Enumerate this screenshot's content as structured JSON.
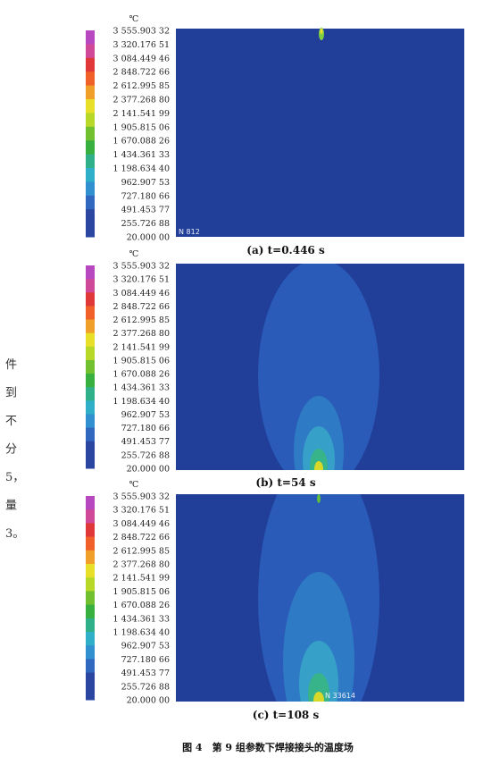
{
  "side_text": [
    "件",
    "到",
    "不",
    "分",
    "5，",
    "量",
    "3。"
  ],
  "unit": "℃",
  "legend_labels": [
    "3 555.903 32",
    "3 320.176 51",
    "3 084.449 46",
    "2 848.722 66",
    "2 612.995 85",
    "2 377.268 80",
    "2 141.541 99",
    "1 905.815 06",
    "1 670.088 26",
    "1 434.361 33",
    "1 198.634 40",
    "962.907 53",
    "727.180 66",
    "491.453 77",
    "255.726 88",
    "20.000 00"
  ],
  "panels": [
    {
      "caption": "(a) t=0.446 s",
      "node_label": "N 812"
    },
    {
      "caption": "(b) t=54 s"
    },
    {
      "caption": "(c) t=108 s",
      "node_label": "N 33614"
    }
  ],
  "figure_caption": "图 4　第 9 组参数下焊接接头的温度场"
}
